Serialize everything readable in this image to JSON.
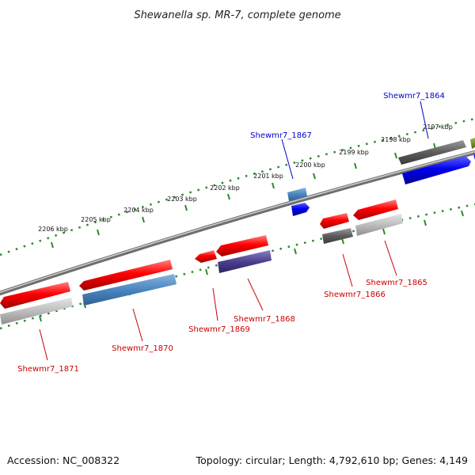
{
  "title": "Shewanella sp. MR-7, complete genome",
  "footer": {
    "accession": "Accession: NC_008322",
    "summary": "Topology: circular; Length: 4,792,610 bp; Genes: 4,149"
  },
  "colors": {
    "forward_label": "#0000cc",
    "reverse_label": "#cc0000",
    "tick": "#2a8a2a",
    "backbone": "#888888"
  },
  "ticks": [
    "2197 kbp",
    "2198 kbp",
    "2199 kbp",
    "2200 kbp",
    "2201 kbp",
    "2202 kbp",
    "2203 kbp",
    "2204 kbp",
    "2205 kbp",
    "2206 kbp"
  ],
  "genes": [
    {
      "name": "Shewmr7_1864",
      "strand": "forward"
    },
    {
      "name": "Shewmr7_1865",
      "strand": "reverse"
    },
    {
      "name": "Shewmr7_1866",
      "strand": "reverse"
    },
    {
      "name": "Shewmr7_1867",
      "strand": "forward"
    },
    {
      "name": "Shewmr7_1868",
      "strand": "reverse"
    },
    {
      "name": "Shewmr7_1869",
      "strand": "reverse"
    },
    {
      "name": "Shewmr7_1870",
      "strand": "reverse"
    },
    {
      "name": "Shewmr7_1871",
      "strand": "reverse"
    }
  ]
}
